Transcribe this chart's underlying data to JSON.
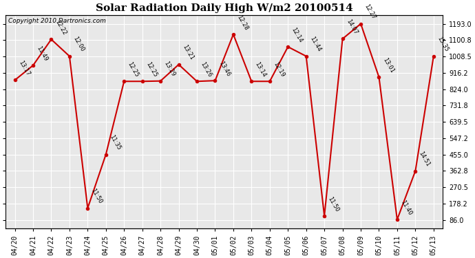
{
  "title": "Solar Radiation Daily High W/m2 20100514",
  "copyright": "Copyright 2010 Dartronics.com",
  "dates": [
    "04/20",
    "04/21",
    "04/22",
    "04/23",
    "04/24",
    "04/25",
    "04/26",
    "04/27",
    "04/28",
    "04/29",
    "04/30",
    "05/01",
    "05/02",
    "05/03",
    "05/04",
    "05/05",
    "05/06",
    "05/07",
    "05/08",
    "05/09",
    "05/10",
    "05/11",
    "05/12",
    "05/13"
  ],
  "values": [
    875,
    958,
    1105,
    1010,
    152,
    455,
    868,
    868,
    870,
    963,
    868,
    872,
    1133,
    868,
    868,
    1063,
    1010,
    108,
    1108,
    1193,
    892,
    88,
    362,
    1010
  ],
  "time_labels": [
    "13:17",
    "11:49",
    "12:22",
    "12:00",
    "11:50",
    "11:35",
    "12:25",
    "12:25",
    "13:29",
    "13:21",
    "13:26",
    "13:46",
    "12:28",
    "13:14",
    "12:19",
    "12:14",
    "11:44",
    "11:50",
    "14:07",
    "12:27",
    "13:01",
    "11:40",
    "14:51",
    "15:35"
  ],
  "line_color": "#cc0000",
  "marker_color": "#cc0000",
  "bg_color": "#ffffff",
  "plot_bg_color": "#e8e8e8",
  "grid_color": "#ffffff",
  "yticks": [
    86.0,
    178.2,
    270.5,
    362.8,
    455.0,
    547.2,
    639.5,
    731.8,
    824.0,
    916.2,
    1008.5,
    1100.8,
    1193.0
  ],
  "ylim_min": 36.0,
  "ylim_max": 1243.0,
  "title_fontsize": 11,
  "tick_fontsize": 7,
  "copyright_fontsize": 6.5,
  "annot_fontsize": 6
}
